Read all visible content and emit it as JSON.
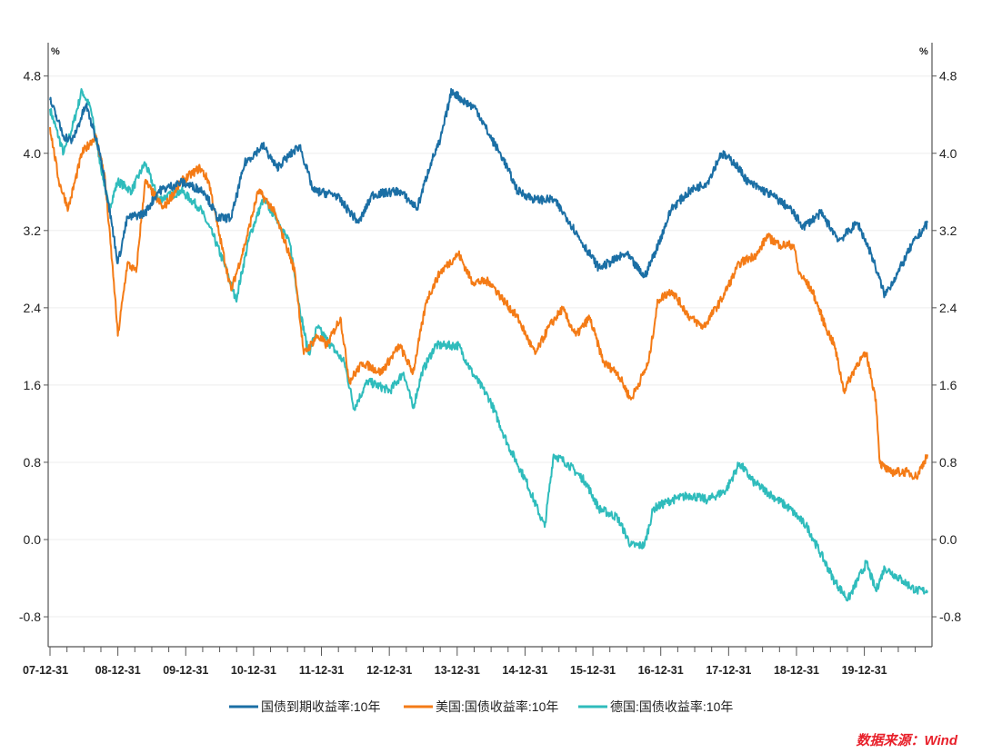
{
  "chart_data": {
    "type": "line",
    "title": "",
    "ylabel_left": "%",
    "ylabel_right": "%",
    "ylim": [
      -1.11,
      5.07
    ],
    "xlim": [
      2008.0,
      2020.97
    ],
    "yticks": [
      4.8,
      4.0,
      3.2,
      2.4,
      1.6,
      0.8,
      0.0,
      -0.8
    ],
    "ytick_labels": [
      "4.8",
      "4.0",
      "3.2",
      "2.4",
      "1.6",
      "0.8",
      "0.0",
      "-0.8"
    ],
    "xticks": [
      2008.0,
      2009.0,
      2010.0,
      2011.0,
      2012.0,
      2013.0,
      2014.0,
      2015.0,
      2016.0,
      2017.0,
      2018.0,
      2019.0,
      2020.0
    ],
    "xtick_labels": [
      "07-12-31",
      "08-12-31",
      "09-12-31",
      "10-12-31",
      "11-12-31",
      "12-12-31",
      "13-12-31",
      "14-12-31",
      "15-12-31",
      "16-12-31",
      "17-12-31",
      "18-12-31",
      "19-12-31"
    ],
    "grid": true,
    "legend_position": "bottom",
    "source": "数据来源：Wind",
    "series": [
      {
        "name": "国债到期收益率:10年",
        "color": "#1b6fa5",
        "points": [
          [
            2008.0,
            4.55
          ],
          [
            2008.2,
            4.18
          ],
          [
            2008.33,
            4.13
          ],
          [
            2008.53,
            4.5
          ],
          [
            2008.74,
            4.0
          ],
          [
            2008.94,
            3.14
          ],
          [
            2009.0,
            2.86
          ],
          [
            2009.14,
            3.33
          ],
          [
            2009.4,
            3.38
          ],
          [
            2009.6,
            3.61
          ],
          [
            2009.94,
            3.7
          ],
          [
            2010.27,
            3.61
          ],
          [
            2010.47,
            3.33
          ],
          [
            2010.67,
            3.33
          ],
          [
            2010.87,
            3.9
          ],
          [
            2011.14,
            4.08
          ],
          [
            2011.34,
            3.85
          ],
          [
            2011.68,
            4.08
          ],
          [
            2011.88,
            3.61
          ],
          [
            2012.21,
            3.57
          ],
          [
            2012.55,
            3.28
          ],
          [
            2012.75,
            3.57
          ],
          [
            2013.15,
            3.61
          ],
          [
            2013.41,
            3.43
          ],
          [
            2013.61,
            3.9
          ],
          [
            2013.75,
            4.13
          ],
          [
            2013.92,
            4.65
          ],
          [
            2014.08,
            4.55
          ],
          [
            2014.28,
            4.46
          ],
          [
            2014.48,
            4.18
          ],
          [
            2014.68,
            3.94
          ],
          [
            2014.89,
            3.61
          ],
          [
            2015.15,
            3.52
          ],
          [
            2015.42,
            3.52
          ],
          [
            2015.62,
            3.33
          ],
          [
            2015.82,
            3.1
          ],
          [
            2016.09,
            2.81
          ],
          [
            2016.49,
            2.96
          ],
          [
            2016.76,
            2.72
          ],
          [
            2016.96,
            3.05
          ],
          [
            2017.16,
            3.43
          ],
          [
            2017.43,
            3.61
          ],
          [
            2017.69,
            3.7
          ],
          [
            2017.89,
            4.0
          ],
          [
            2018.09,
            3.9
          ],
          [
            2018.29,
            3.7
          ],
          [
            2018.63,
            3.57
          ],
          [
            2018.9,
            3.43
          ],
          [
            2019.1,
            3.24
          ],
          [
            2019.36,
            3.38
          ],
          [
            2019.63,
            3.1
          ],
          [
            2019.9,
            3.28
          ],
          [
            2020.1,
            2.96
          ],
          [
            2020.3,
            2.53
          ],
          [
            2020.5,
            2.77
          ],
          [
            2020.7,
            3.05
          ],
          [
            2020.93,
            3.28
          ]
        ]
      },
      {
        "name": "美国:国债收益率:10年",
        "color": "#f47b16",
        "points": [
          [
            2008.0,
            4.27
          ],
          [
            2008.13,
            3.71
          ],
          [
            2008.27,
            3.43
          ],
          [
            2008.47,
            4.0
          ],
          [
            2008.67,
            4.18
          ],
          [
            2008.8,
            3.8
          ],
          [
            2008.94,
            2.67
          ],
          [
            2009.0,
            2.11
          ],
          [
            2009.14,
            2.86
          ],
          [
            2009.27,
            2.77
          ],
          [
            2009.4,
            3.71
          ],
          [
            2009.67,
            3.43
          ],
          [
            2009.94,
            3.71
          ],
          [
            2010.21,
            3.85
          ],
          [
            2010.34,
            3.71
          ],
          [
            2010.47,
            3.24
          ],
          [
            2010.67,
            2.58
          ],
          [
            2010.87,
            3.05
          ],
          [
            2011.07,
            3.61
          ],
          [
            2011.28,
            3.43
          ],
          [
            2011.48,
            3.05
          ],
          [
            2011.61,
            2.77
          ],
          [
            2011.74,
            1.92
          ],
          [
            2011.94,
            2.11
          ],
          [
            2012.08,
            2.01
          ],
          [
            2012.28,
            2.3
          ],
          [
            2012.41,
            1.64
          ],
          [
            2012.61,
            1.83
          ],
          [
            2012.88,
            1.73
          ],
          [
            2013.15,
            2.01
          ],
          [
            2013.35,
            1.73
          ],
          [
            2013.55,
            2.48
          ],
          [
            2013.75,
            2.77
          ],
          [
            2014.02,
            2.96
          ],
          [
            2014.22,
            2.67
          ],
          [
            2014.48,
            2.67
          ],
          [
            2014.68,
            2.48
          ],
          [
            2014.89,
            2.3
          ],
          [
            2015.02,
            2.11
          ],
          [
            2015.15,
            1.92
          ],
          [
            2015.35,
            2.2
          ],
          [
            2015.55,
            2.39
          ],
          [
            2015.75,
            2.11
          ],
          [
            2015.95,
            2.3
          ],
          [
            2016.16,
            1.83
          ],
          [
            2016.36,
            1.73
          ],
          [
            2016.56,
            1.45
          ],
          [
            2016.82,
            1.83
          ],
          [
            2016.96,
            2.48
          ],
          [
            2017.16,
            2.58
          ],
          [
            2017.43,
            2.3
          ],
          [
            2017.63,
            2.2
          ],
          [
            2017.89,
            2.48
          ],
          [
            2018.16,
            2.86
          ],
          [
            2018.43,
            2.96
          ],
          [
            2018.56,
            3.14
          ],
          [
            2018.76,
            3.05
          ],
          [
            2018.96,
            3.05
          ],
          [
            2019.03,
            2.77
          ],
          [
            2019.23,
            2.58
          ],
          [
            2019.43,
            2.2
          ],
          [
            2019.56,
            2.01
          ],
          [
            2019.7,
            1.54
          ],
          [
            2019.9,
            1.83
          ],
          [
            2020.03,
            1.92
          ],
          [
            2020.17,
            1.45
          ],
          [
            2020.23,
            0.79
          ],
          [
            2020.37,
            0.7
          ],
          [
            2020.63,
            0.7
          ],
          [
            2020.77,
            0.65
          ],
          [
            2020.93,
            0.88
          ]
        ]
      },
      {
        "name": "德国:国债收益率:10年",
        "color": "#2fbcbc",
        "points": [
          [
            2008.0,
            4.46
          ],
          [
            2008.2,
            4.0
          ],
          [
            2008.33,
            4.27
          ],
          [
            2008.47,
            4.65
          ],
          [
            2008.6,
            4.46
          ],
          [
            2008.74,
            3.9
          ],
          [
            2008.87,
            3.43
          ],
          [
            2009.0,
            3.71
          ],
          [
            2009.2,
            3.61
          ],
          [
            2009.4,
            3.9
          ],
          [
            2009.6,
            3.52
          ],
          [
            2009.94,
            3.61
          ],
          [
            2010.21,
            3.43
          ],
          [
            2010.41,
            3.14
          ],
          [
            2010.61,
            2.77
          ],
          [
            2010.74,
            2.48
          ],
          [
            2010.94,
            3.14
          ],
          [
            2011.14,
            3.52
          ],
          [
            2011.34,
            3.33
          ],
          [
            2011.54,
            3.05
          ],
          [
            2011.68,
            2.39
          ],
          [
            2011.81,
            1.92
          ],
          [
            2011.94,
            2.2
          ],
          [
            2012.14,
            2.01
          ],
          [
            2012.34,
            1.83
          ],
          [
            2012.48,
            1.36
          ],
          [
            2012.68,
            1.64
          ],
          [
            2013.01,
            1.54
          ],
          [
            2013.21,
            1.73
          ],
          [
            2013.35,
            1.36
          ],
          [
            2013.48,
            1.73
          ],
          [
            2013.68,
            2.01
          ],
          [
            2014.02,
            2.01
          ],
          [
            2014.22,
            1.73
          ],
          [
            2014.48,
            1.45
          ],
          [
            2014.75,
            0.98
          ],
          [
            2015.02,
            0.6
          ],
          [
            2015.29,
            0.13
          ],
          [
            2015.42,
            0.88
          ],
          [
            2015.62,
            0.79
          ],
          [
            2015.89,
            0.6
          ],
          [
            2016.09,
            0.32
          ],
          [
            2016.36,
            0.23
          ],
          [
            2016.56,
            -0.06
          ],
          [
            2016.76,
            -0.06
          ],
          [
            2016.89,
            0.32
          ],
          [
            2017.16,
            0.41
          ],
          [
            2017.43,
            0.46
          ],
          [
            2017.69,
            0.41
          ],
          [
            2017.96,
            0.51
          ],
          [
            2018.16,
            0.79
          ],
          [
            2018.36,
            0.6
          ],
          [
            2018.63,
            0.46
          ],
          [
            2018.9,
            0.32
          ],
          [
            2019.16,
            0.13
          ],
          [
            2019.36,
            -0.15
          ],
          [
            2019.56,
            -0.43
          ],
          [
            2019.76,
            -0.62
          ],
          [
            2020.03,
            -0.24
          ],
          [
            2020.17,
            -0.53
          ],
          [
            2020.3,
            -0.29
          ],
          [
            2020.57,
            -0.43
          ],
          [
            2020.77,
            -0.53
          ],
          [
            2020.93,
            -0.53
          ]
        ]
      }
    ]
  }
}
